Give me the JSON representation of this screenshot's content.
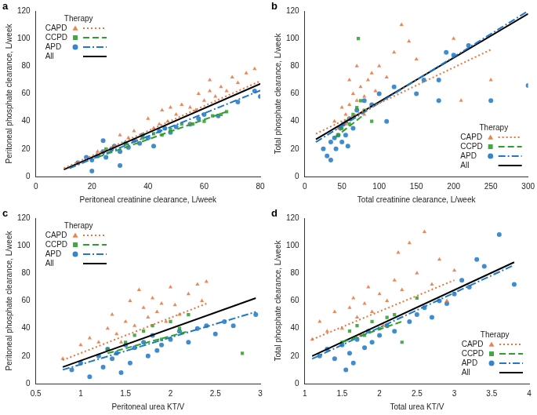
{
  "chart_data": [
    {
      "type": "scatter",
      "label": "a",
      "x_label": "Peritoneal creatinine clearance, L/week",
      "y_label": "Peritoneal phosphate clearance, L/week",
      "xlim": [
        0,
        80
      ],
      "xticks": [
        0,
        20,
        40,
        60,
        80
      ],
      "ylim": [
        0,
        120
      ],
      "yticks": [
        0,
        20,
        40,
        60,
        80,
        100,
        120
      ],
      "grid": false,
      "legend": "upper left",
      "legend_title": "Therapy",
      "series": [
        {
          "name": "CAPD",
          "color": "#e8743b",
          "marker": "triangle",
          "line_style": "dotted",
          "x": [
            15,
            22,
            28,
            30,
            33,
            35,
            38,
            40,
            42,
            45,
            47,
            50,
            52,
            55,
            57,
            58,
            60,
            62,
            64,
            66,
            68,
            70,
            72,
            75,
            78,
            62,
            55,
            48,
            44,
            36
          ],
          "y": [
            10,
            18,
            22,
            30,
            28,
            33,
            30,
            42,
            35,
            48,
            40,
            45,
            52,
            50,
            48,
            60,
            55,
            62,
            58,
            65,
            62,
            72,
            68,
            75,
            78,
            70,
            38,
            50,
            38,
            26
          ],
          "fit": {
            "x": [
              10,
              82
            ],
            "y": [
              6,
              71
            ]
          }
        },
        {
          "name": "CCPD",
          "color": "#2e9e2e",
          "marker": "square",
          "line_style": "dashed",
          "x": [
            25,
            32,
            38,
            42,
            48,
            52,
            56,
            60,
            63,
            66,
            68,
            45
          ],
          "y": [
            20,
            24,
            28,
            31,
            34,
            38,
            38,
            40,
            44,
            45,
            47,
            30
          ],
          "fit": {
            "x": [
              22,
              68
            ],
            "y": [
              14,
              47
            ]
          }
        },
        {
          "name": "APD",
          "color": "#1f78c8",
          "marker": "circle",
          "line_style": "dashdot",
          "x": [
            15,
            18,
            20,
            22,
            24,
            25,
            27,
            28,
            30,
            32,
            33,
            35,
            37,
            38,
            40,
            42,
            44,
            46,
            48,
            50,
            55,
            58,
            60,
            65,
            72,
            78,
            80,
            20,
            30,
            24
          ],
          "y": [
            10,
            14,
            12,
            15,
            18,
            14,
            20,
            22,
            18,
            24,
            21,
            26,
            24,
            30,
            28,
            22,
            33,
            35,
            32,
            36,
            38,
            42,
            45,
            44,
            54,
            62,
            58,
            4,
            8,
            26
          ],
          "fit": {
            "x": [
              12,
              82
            ],
            "y": [
              6,
              64
            ]
          }
        },
        {
          "name": "All",
          "color": "#000000",
          "type": "line",
          "line_style": "solid",
          "x": [
            10,
            82
          ],
          "y": [
            5,
            69
          ]
        }
      ]
    },
    {
      "type": "scatter",
      "label": "b",
      "x_label": "Total creatinine clearance, L/week",
      "y_label": "Total phosphate clearance, L/week",
      "xlim": [
        0,
        300
      ],
      "xticks": [
        0,
        50,
        100,
        150,
        200,
        250,
        300
      ],
      "ylim": [
        0,
        120
      ],
      "yticks": [
        0,
        20,
        40,
        60,
        80,
        100,
        120
      ],
      "grid": false,
      "legend": "lower right",
      "legend_title": "Therapy",
      "series": [
        {
          "name": "CAPD",
          "color": "#e8743b",
          "marker": "triangle",
          "line_style": "dotted",
          "x": [
            40,
            45,
            50,
            55,
            60,
            65,
            70,
            75,
            80,
            85,
            90,
            95,
            100,
            110,
            120,
            130,
            140,
            150,
            60,
            70,
            200,
            250,
            210,
            80,
            55
          ],
          "y": [
            40,
            35,
            50,
            45,
            52,
            60,
            55,
            65,
            58,
            70,
            75,
            62,
            80,
            72,
            90,
            110,
            98,
            85,
            70,
            80,
            100,
            70,
            55,
            45,
            38
          ],
          "fit": {
            "x": [
              15,
              250
            ],
            "y": [
              31,
              92
            ]
          }
        },
        {
          "name": "CCPD",
          "color": "#2e9e2e",
          "marker": "square",
          "line_style": "dashed",
          "x": [
            45,
            50,
            55,
            60,
            65,
            70,
            75,
            80,
            90,
            72
          ],
          "y": [
            30,
            35,
            40,
            38,
            45,
            50,
            55,
            48,
            40,
            100
          ],
          "fit": {
            "x": [
              40,
              80
            ],
            "y": [
              28,
              45
            ]
          }
        },
        {
          "name": "APD",
          "color": "#1f78c8",
          "marker": "circle",
          "line_style": "dashdot",
          "x": [
            25,
            30,
            35,
            40,
            42,
            45,
            48,
            50,
            52,
            55,
            60,
            65,
            70,
            80,
            90,
            100,
            120,
            150,
            160,
            180,
            190,
            200,
            220,
            180,
            250,
            300,
            35,
            58,
            110
          ],
          "y": [
            20,
            15,
            25,
            28,
            20,
            30,
            35,
            25,
            38,
            30,
            42,
            35,
            48,
            55,
            52,
            60,
            65,
            60,
            70,
            70,
            90,
            88,
            95,
            55,
            55,
            66,
            12,
            22,
            40
          ],
          "fit": {
            "x": [
              15,
              300
            ],
            "y": [
              25,
              120
            ]
          }
        },
        {
          "name": "All",
          "color": "#000000",
          "type": "line",
          "line_style": "solid",
          "x": [
            15,
            300
          ],
          "y": [
            27,
            118
          ]
        }
      ]
    },
    {
      "type": "scatter",
      "label": "c",
      "x_label": "Peritoneal urea KT/V",
      "y_label": "Peritoneal phosphate clearance, L/week",
      "xlim": [
        0.5,
        3
      ],
      "xticks": [
        0.5,
        1,
        1.5,
        2,
        2.5,
        3
      ],
      "ylim": [
        0,
        120
      ],
      "yticks": [
        0,
        20,
        40,
        60,
        80,
        100,
        120
      ],
      "grid": false,
      "legend": "upper left",
      "legend_title": "Therapy",
      "series": [
        {
          "name": "CAPD",
          "color": "#e8743b",
          "marker": "triangle",
          "line_style": "dotted",
          "x": [
            0.8,
            1.0,
            1.1,
            1.2,
            1.3,
            1.35,
            1.4,
            1.5,
            1.55,
            1.6,
            1.65,
            1.7,
            1.75,
            1.8,
            1.85,
            1.9,
            1.95,
            2.0,
            2.05,
            2.1,
            2.2,
            2.3,
            2.35,
            2.4,
            1.45
          ],
          "y": [
            18,
            28,
            33,
            30,
            40,
            50,
            36,
            45,
            60,
            42,
            68,
            55,
            48,
            62,
            52,
            58,
            45,
            70,
            57,
            50,
            65,
            72,
            60,
            74,
            30
          ],
          "fit": {
            "x": [
              0.8,
              2.4
            ],
            "y": [
              17,
              58
            ]
          }
        },
        {
          "name": "CCPD",
          "color": "#2e9e2e",
          "marker": "square",
          "line_style": "dashed",
          "x": [
            1.3,
            1.5,
            1.6,
            1.7,
            1.8,
            1.9,
            2.0,
            2.1,
            2.2,
            2.8
          ],
          "y": [
            25,
            30,
            35,
            38,
            42,
            32,
            45,
            40,
            50,
            22
          ],
          "fit": {
            "x": [
              1.3,
              2.2
            ],
            "y": [
              22,
              38
            ]
          }
        },
        {
          "name": "APD",
          "color": "#1f78c8",
          "marker": "circle",
          "line_style": "dashdot",
          "x": [
            0.9,
            1.0,
            1.1,
            1.2,
            1.25,
            1.3,
            1.35,
            1.4,
            1.5,
            1.55,
            1.6,
            1.7,
            1.75,
            1.8,
            1.85,
            1.9,
            2.0,
            2.1,
            2.2,
            2.3,
            2.4,
            2.5,
            2.6,
            2.7,
            2.95,
            1.45
          ],
          "y": [
            10,
            15,
            5,
            20,
            12,
            25,
            18,
            22,
            28,
            15,
            26,
            30,
            20,
            35,
            24,
            28,
            32,
            38,
            30,
            40,
            42,
            36,
            45,
            42,
            50,
            8
          ],
          "fit": {
            "x": [
              0.8,
              2.95
            ],
            "y": [
              10,
              52
            ]
          }
        },
        {
          "name": "All",
          "color": "#000000",
          "type": "line",
          "line_style": "solid",
          "x": [
            0.8,
            2.95
          ],
          "y": [
            12,
            62
          ]
        }
      ]
    },
    {
      "type": "scatter",
      "label": "d",
      "x_label": "Total urea KT/V",
      "y_label": "Total phosphate clearance, L/week",
      "xlim": [
        1,
        4
      ],
      "xticks": [
        1,
        1.5,
        2,
        2.5,
        3,
        3.5,
        4
      ],
      "ylim": [
        0,
        120
      ],
      "yticks": [
        0,
        20,
        40,
        60,
        80,
        100,
        120
      ],
      "grid": false,
      "legend": "lower right",
      "legend_title": "Therapy",
      "series": [
        {
          "name": "CAPD",
          "color": "#e8743b",
          "marker": "triangle",
          "line_style": "dotted",
          "x": [
            1.1,
            1.2,
            1.3,
            1.4,
            1.5,
            1.6,
            1.65,
            1.7,
            1.8,
            1.85,
            1.9,
            2.0,
            2.1,
            2.2,
            2.3,
            2.4,
            2.5,
            2.6,
            2.7,
            2.8,
            3.0,
            2.25,
            1.75,
            2.05,
            2.9
          ],
          "y": [
            32,
            45,
            38,
            52,
            40,
            55,
            62,
            48,
            58,
            70,
            52,
            65,
            60,
            75,
            68,
            102,
            80,
            110,
            72,
            90,
            82,
            95,
            35,
            42,
            60
          ],
          "fit": {
            "x": [
              1.1,
              3.0
            ],
            "y": [
              32,
              75
            ]
          }
        },
        {
          "name": "CCPD",
          "color": "#2e9e2e",
          "marker": "square",
          "line_style": "dashed",
          "x": [
            1.5,
            1.6,
            1.7,
            1.8,
            1.9,
            2.0,
            2.1,
            2.2,
            2.3,
            2.5
          ],
          "y": [
            30,
            38,
            42,
            35,
            45,
            40,
            48,
            50,
            30,
            62
          ],
          "fit": {
            "x": [
              1.5,
              2.3
            ],
            "y": [
              30,
              45
            ]
          }
        },
        {
          "name": "APD",
          "color": "#1f78c8",
          "marker": "circle",
          "line_style": "dashdot",
          "x": [
            1.2,
            1.3,
            1.4,
            1.5,
            1.6,
            1.65,
            1.7,
            1.8,
            1.85,
            1.9,
            2.0,
            2.1,
            2.2,
            2.4,
            2.5,
            2.6,
            2.7,
            2.8,
            2.9,
            3.0,
            3.1,
            3.2,
            3.3,
            3.4,
            3.6,
            3.8,
            1.55
          ],
          "y": [
            20,
            25,
            18,
            28,
            22,
            15,
            32,
            26,
            38,
            30,
            35,
            42,
            38,
            45,
            50,
            55,
            48,
            60,
            58,
            65,
            75,
            70,
            90,
            85,
            108,
            72,
            10
          ],
          "fit": {
            "x": [
              1.1,
              3.8
            ],
            "y": [
              18,
              86
            ]
          }
        },
        {
          "name": "All",
          "color": "#000000",
          "type": "line",
          "line_style": "solid",
          "x": [
            1.1,
            3.8
          ],
          "y": [
            20,
            88
          ]
        }
      ]
    }
  ]
}
